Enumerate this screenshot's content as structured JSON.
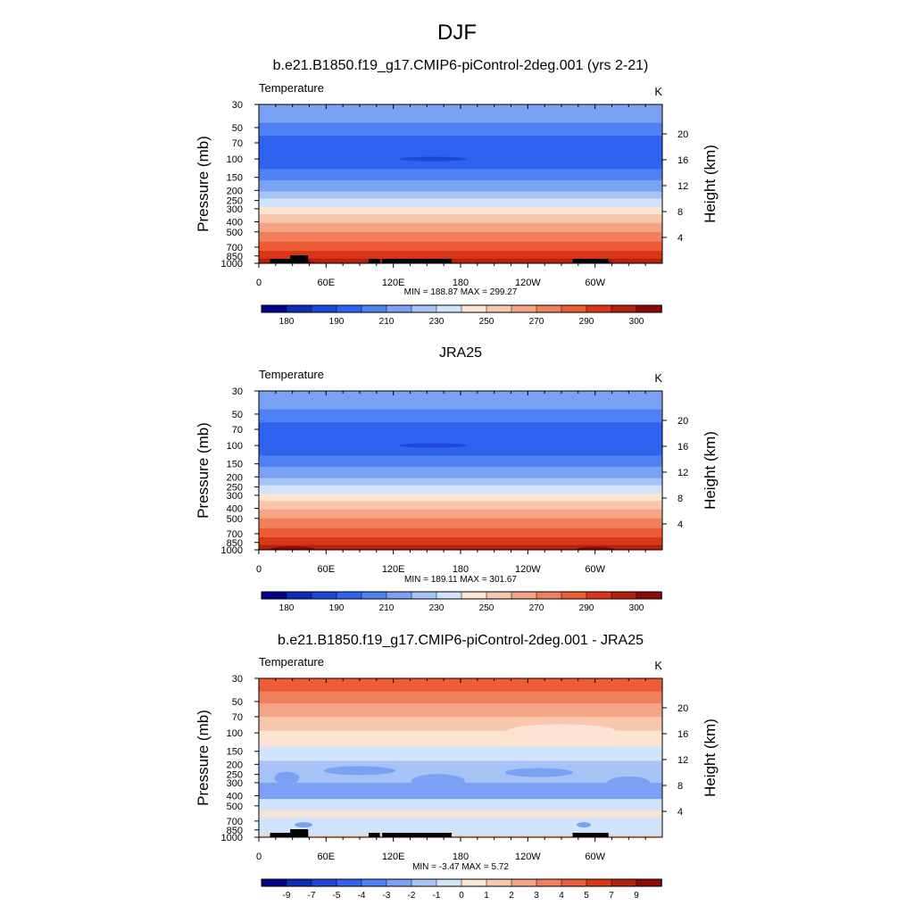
{
  "figure": {
    "title": "DJF"
  },
  "colors": {
    "abs_palette": [
      "#00008c",
      "#0a2dbb",
      "#1f47db",
      "#2f63ef",
      "#4e82f2",
      "#7aa1f4",
      "#a7c3f6",
      "#d2e4fb",
      "#fde4d2",
      "#f9c6ae",
      "#f5a585",
      "#f07f5b",
      "#eb5c37",
      "#d93716",
      "#b4210e",
      "#8c0a0a"
    ],
    "diff_palette": [
      "#00008c",
      "#0a2dbb",
      "#1f47db",
      "#2f63ef",
      "#4e82f2",
      "#7aa1f4",
      "#a7c3f6",
      "#d2e4fb",
      "#fde4d2",
      "#f9c6ae",
      "#f5a585",
      "#f07f5b",
      "#eb5c37",
      "#d93716",
      "#b4210e",
      "#8c0a0a"
    ],
    "terrain": "#000000"
  },
  "chart_data": [
    {
      "type": "heatmap",
      "title": "b.e21.B1850.f19_g17.CMIP6-piControl-2deg.001 (yrs 2-21)",
      "left_label": "Temperature",
      "units": "K",
      "ylabel": "Pressure (mb)",
      "ylabel_right": "Height (km)",
      "x_ticks": [
        "0",
        "60E",
        "120E",
        "180",
        "120W",
        "60W"
      ],
      "x_range": [
        0,
        360
      ],
      "y_ticks": [
        "30",
        "50",
        "70",
        "100",
        "150",
        "200",
        "250",
        "300",
        "400",
        "500",
        "700",
        "850",
        "1000"
      ],
      "y_ticks_right": [
        "20",
        "16",
        "12",
        "8",
        "4"
      ],
      "y_range_mb": [
        30,
        1000
      ],
      "y_scale": "log",
      "stats": "MIN = 188.87  MAX = 299.27",
      "min": 188.87,
      "max": 299.27,
      "cbar_labels": [
        "180",
        "190",
        "210",
        "230",
        "250",
        "270",
        "290",
        "300"
      ],
      "terrain_mask": true
    },
    {
      "type": "heatmap",
      "title": "JRA25",
      "left_label": "Temperature",
      "units": "K",
      "ylabel": "Pressure (mb)",
      "ylabel_right": "Height (km)",
      "x_ticks": [
        "0",
        "60E",
        "120E",
        "180",
        "120W",
        "60W"
      ],
      "x_range": [
        0,
        360
      ],
      "y_ticks": [
        "30",
        "50",
        "70",
        "100",
        "150",
        "200",
        "250",
        "300",
        "400",
        "500",
        "700",
        "850",
        "1000"
      ],
      "y_ticks_right": [
        "20",
        "16",
        "12",
        "8",
        "4"
      ],
      "y_range_mb": [
        30,
        1000
      ],
      "y_scale": "log",
      "stats": "MIN = 189.11  MAX = 301.67",
      "min": 189.11,
      "max": 301.67,
      "cbar_labels": [
        "180",
        "190",
        "210",
        "230",
        "250",
        "270",
        "290",
        "300"
      ],
      "terrain_mask": false
    },
    {
      "type": "heatmap",
      "title": "b.e21.B1850.f19_g17.CMIP6-piControl-2deg.001 - JRA25",
      "left_label": "Temperature",
      "units": "K",
      "ylabel": "Pressure (mb)",
      "ylabel_right": "Height (km)",
      "x_ticks": [
        "0",
        "60E",
        "120E",
        "180",
        "120W",
        "60W"
      ],
      "x_range": [
        0,
        360
      ],
      "y_ticks": [
        "30",
        "50",
        "70",
        "100",
        "150",
        "200",
        "250",
        "300",
        "400",
        "500",
        "700",
        "850",
        "1000"
      ],
      "y_ticks_right": [
        "20",
        "16",
        "12",
        "8",
        "4"
      ],
      "y_range_mb": [
        30,
        1000
      ],
      "y_scale": "log",
      "stats": "MIN =  -3.47  MAX =   5.72",
      "min": -3.47,
      "max": 5.72,
      "cbar_labels": [
        "-9",
        "-7",
        "-5",
        "-4",
        "-3",
        "-2",
        "-1",
        "0",
        "1",
        "2",
        "3",
        "4",
        "5",
        "7",
        "9"
      ],
      "terrain_mask": true
    }
  ]
}
